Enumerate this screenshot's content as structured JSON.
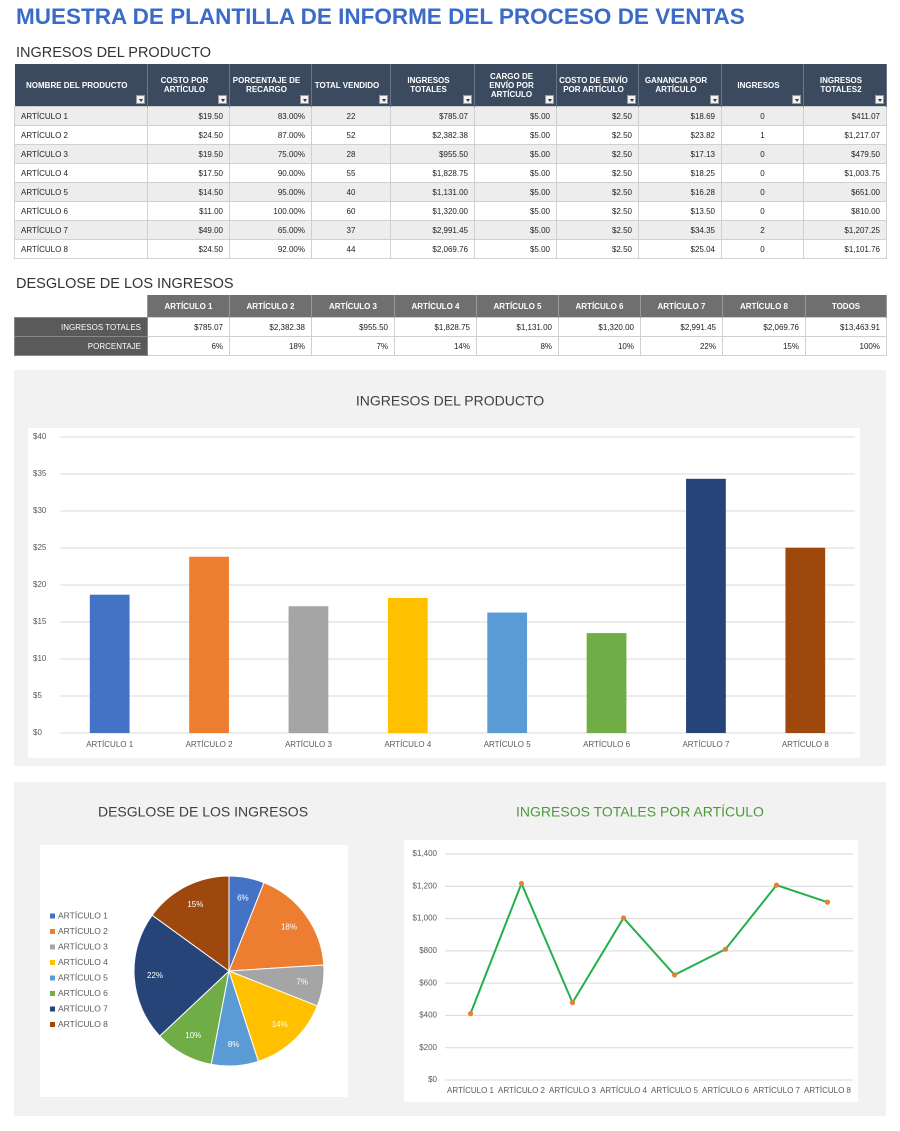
{
  "header": {
    "title": "MUESTRA DE PLANTILLA DE INFORME DEL PROCESO DE VENTAS"
  },
  "table": {
    "title": "INGRESOS DEL PRODUCTO",
    "columns": [
      "NOMBRE DEL PRODUCTO",
      "COSTO POR ARTÍCULO",
      "PORCENTAJE DE RECARGO",
      "TOTAL VENDIDO",
      "INGRESOS TOTALES",
      "CARGO DE ENVÍO POR ARTÍCULO",
      "COSTO DE ENVÍO POR ARTÍCULO",
      "GANANCIA POR ARTÍCULO",
      "INGRESOS",
      "INGRESOS TOTALES2"
    ],
    "rows": [
      [
        "ARTÍCULO 1",
        "$19.50",
        "83.00%",
        "22",
        "$785.07",
        "$5.00",
        "$2.50",
        "$18.69",
        "0",
        "$411.07"
      ],
      [
        "ARTÍCULO 2",
        "$24.50",
        "87.00%",
        "52",
        "$2,382.38",
        "$5.00",
        "$2.50",
        "$23.82",
        "1",
        "$1,217.07"
      ],
      [
        "ARTÍCULO 3",
        "$19.50",
        "75.00%",
        "28",
        "$955.50",
        "$5.00",
        "$2.50",
        "$17.13",
        "0",
        "$479.50"
      ],
      [
        "ARTÍCULO 4",
        "$17.50",
        "90.00%",
        "55",
        "$1,828.75",
        "$5.00",
        "$2.50",
        "$18.25",
        "0",
        "$1,003.75"
      ],
      [
        "ARTÍCULO 5",
        "$14.50",
        "95.00%",
        "40",
        "$1,131.00",
        "$5.00",
        "$2.50",
        "$16.28",
        "0",
        "$651.00"
      ],
      [
        "ARTÍCULO 6",
        "$11.00",
        "100.00%",
        "60",
        "$1,320.00",
        "$5.00",
        "$2.50",
        "$13.50",
        "0",
        "$810.00"
      ],
      [
        "ARTÍCULO 7",
        "$49.00",
        "65.00%",
        "37",
        "$2,991.45",
        "$5.00",
        "$2.50",
        "$34.35",
        "2",
        "$1,207.25"
      ],
      [
        "ARTÍCULO 8",
        "$24.50",
        "92.00%",
        "44",
        "$2,069.76",
        "$5.00",
        "$2.50",
        "$25.04",
        "0",
        "$1,101.76"
      ]
    ]
  },
  "summary": {
    "title": "DESGLOSE DE LOS INGRESOS",
    "columns": [
      "ARTÍCULO 1",
      "ARTÍCULO 2",
      "ARTÍCULO 3",
      "ARTÍCULO 4",
      "ARTÍCULO 5",
      "ARTÍCULO 6",
      "ARTÍCULO 7",
      "ARTÍCULO 8",
      "TODOS"
    ],
    "rows": [
      {
        "label": "INGRESOS TOTALES",
        "cells": [
          "$785.07",
          "$2,382.38",
          "$955.50",
          "$1,828.75",
          "$1,131.00",
          "$1,320.00",
          "$2,991.45",
          "$2,069.76",
          "$13,463.91"
        ]
      },
      {
        "label": "PORCENTAJE",
        "cells": [
          "6%",
          "18%",
          "7%",
          "14%",
          "8%",
          "10%",
          "22%",
          "15%",
          "100%"
        ]
      }
    ]
  },
  "chart_data": [
    {
      "type": "bar",
      "title": "INGRESOS DEL PRODUCTO",
      "categories": [
        "ARTÍCULO 1",
        "ARTÍCULO 2",
        "ARTÍCULO 3",
        "ARTÍCULO 4",
        "ARTÍCULO 5",
        "ARTÍCULO 6",
        "ARTÍCULO 7",
        "ARTÍCULO 8"
      ],
      "values": [
        18.69,
        23.82,
        17.13,
        18.25,
        16.28,
        13.5,
        34.35,
        25.04
      ],
      "colors": [
        "#4472c4",
        "#ed7d31",
        "#a5a5a5",
        "#ffc000",
        "#5b9bd5",
        "#70ad47",
        "#264478",
        "#9e480e"
      ],
      "ylim": [
        0,
        40
      ],
      "yticks": [
        {
          "value": 0,
          "label": "$0"
        },
        {
          "value": 5,
          "label": "$5"
        },
        {
          "value": 10,
          "label": "$10"
        },
        {
          "value": 15,
          "label": "$15"
        },
        {
          "value": 20,
          "label": "$20"
        },
        {
          "value": 25,
          "label": "$25"
        },
        {
          "value": 30,
          "label": "$30"
        },
        {
          "value": 35,
          "label": "$35"
        },
        {
          "value": 40,
          "label": "$40"
        }
      ],
      "grid": true
    },
    {
      "type": "pie",
      "title": "DESGLOSE DE LOS INGRESOS",
      "categories": [
        "ARTÍCULO 1",
        "ARTÍCULO 2",
        "ARTÍCULO 3",
        "ARTÍCULO 4",
        "ARTÍCULO 5",
        "ARTÍCULO 6",
        "ARTÍCULO 7",
        "ARTÍCULO 8"
      ],
      "values": [
        6,
        18,
        7,
        14,
        8,
        10,
        22,
        15
      ],
      "value_labels": [
        "6%",
        "18%",
        "7%",
        "14%",
        "8%",
        "10%",
        "22%",
        "15%"
      ],
      "colors": [
        "#4472c4",
        "#ed7d31",
        "#a5a5a5",
        "#ffc000",
        "#5b9bd5",
        "#70ad47",
        "#264478",
        "#9e480e"
      ],
      "legend": "left"
    },
    {
      "type": "line",
      "title": "INGRESOS TOTALES POR ARTÍCULO",
      "categories": [
        "ARTÍCULO 1",
        "ARTÍCULO 2",
        "ARTÍCULO 3",
        "ARTÍCULO 4",
        "ARTÍCULO 5",
        "ARTÍCULO 6",
        "ARTÍCULO 7",
        "ARTÍCULO 8"
      ],
      "values": [
        411.07,
        1217.07,
        479.5,
        1003.75,
        651.0,
        810.0,
        1207.25,
        1101.76
      ],
      "color": "#22b04b",
      "marker_color": "#ed7d31",
      "title_color": "#4e9a3a",
      "ylim": [
        0,
        1400
      ],
      "yticks": [
        {
          "value": 0,
          "label": "$0"
        },
        {
          "value": 200,
          "label": "$200"
        },
        {
          "value": 400,
          "label": "$400"
        },
        {
          "value": 600,
          "label": "$600"
        },
        {
          "value": 800,
          "label": "$800"
        },
        {
          "value": 1000,
          "label": "$1,000"
        },
        {
          "value": 1200,
          "label": "$1,200"
        },
        {
          "value": 1400,
          "label": "$1,400"
        }
      ],
      "grid": true
    }
  ]
}
